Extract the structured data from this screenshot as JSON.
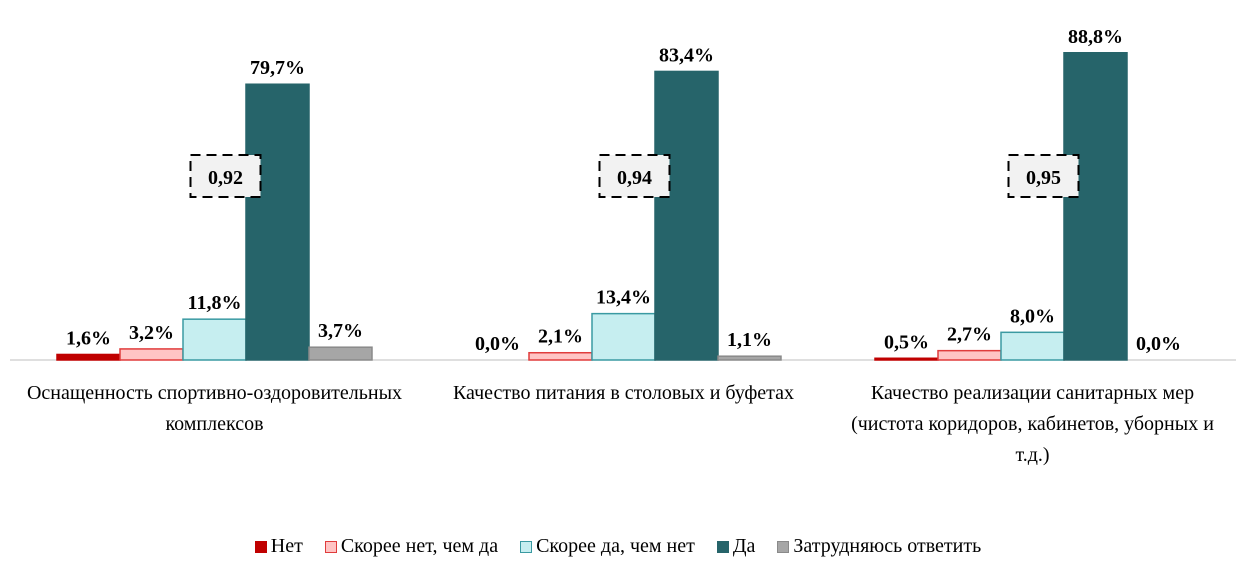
{
  "chart_data": {
    "type": "bar",
    "categories": [
      "Оснащенность спортивно-оздоровительных комплексов",
      "Качество питания в столовых и буфетах",
      "Качество реализации санитарных мер (чистота коридоров, кабинетов, уборных и т.д.)"
    ],
    "series": [
      {
        "name": "Нет",
        "color": "#c00000",
        "edgecolor": "#c00000",
        "values": [
          1.6,
          0.0,
          0.5
        ],
        "value_labels": [
          "1,6%",
          "0,0%",
          "0,5%"
        ]
      },
      {
        "name": "Скорее нет, чем да",
        "color": "#ffc4c4",
        "edgecolor": "#e03c3c",
        "values": [
          3.2,
          2.1,
          2.7
        ],
        "value_labels": [
          "3,2%",
          "2,1%",
          "2,7%"
        ]
      },
      {
        "name": "Скорее да, чем нет",
        "color": "#c6eef0",
        "edgecolor": "#3a9aa2",
        "values": [
          11.8,
          13.4,
          8.0
        ],
        "value_labels": [
          "11,8%",
          "13,4%",
          "8,0%"
        ]
      },
      {
        "name": "Да",
        "color": "#26646a",
        "edgecolor": "#26646a",
        "values": [
          79.7,
          83.4,
          88.8
        ],
        "value_labels": [
          "79,7%",
          "83,4%",
          "88,8%"
        ]
      },
      {
        "name": "Затрудняюсь ответить",
        "color": "#a6a6a6",
        "edgecolor": "#8a8a8a",
        "values": [
          3.7,
          1.1,
          0.0
        ],
        "value_labels": [
          "3,7%",
          "1,1%",
          "0,0%"
        ]
      }
    ],
    "annotations": [
      "0,92",
      "0,94",
      "0,95"
    ],
    "ylim": [
      0,
      100
    ],
    "legend": "bottom"
  }
}
